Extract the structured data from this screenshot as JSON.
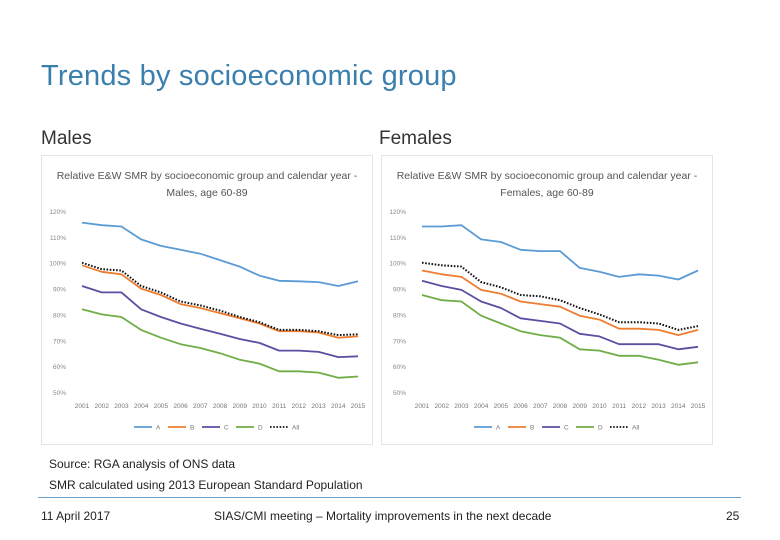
{
  "slide": {
    "title": "Trends by socioeconomic group",
    "males_label": "Males",
    "females_label": "Females",
    "source_note": "Source: RGA analysis of ONS data",
    "smr_note": "SMR calculated using 2013 European Standard Population",
    "footer_date": "11 April 2017",
    "footer_meeting": "SIAS/CMI meeting – Mortality improvements in the next decade",
    "page_number": "25"
  },
  "chart_data": [
    {
      "type": "line",
      "title": "Relative E&W SMR by socioeconomic group and calendar year - Males, age 60-89",
      "xlabel": "",
      "ylabel": "",
      "ylim": [
        50,
        120
      ],
      "yticks": [
        "50%",
        "60%",
        "70%",
        "80%",
        "90%",
        "100%",
        "110%",
        "120%"
      ],
      "x": [
        "2001",
        "2002",
        "2003",
        "2004",
        "2005",
        "2006",
        "2007",
        "2008",
        "2009",
        "2010",
        "2011",
        "2012",
        "2013",
        "2014",
        "2015"
      ],
      "legend_position": "bottom",
      "series": [
        {
          "name": "A",
          "color": "#5b9bd5",
          "dash": "solid",
          "values": [
            115.5,
            114.5,
            114,
            109,
            106.5,
            105,
            103.5,
            101,
            98.5,
            95,
            93,
            92.8,
            92.5,
            91,
            92.8
          ]
        },
        {
          "name": "B",
          "color": "#ed7d31",
          "dash": "solid",
          "values": [
            99,
            96.5,
            95.5,
            90,
            87.5,
            84,
            82.5,
            80.5,
            78.5,
            76.5,
            73.5,
            73.5,
            73,
            71,
            71.5
          ]
        },
        {
          "name": "C",
          "color": "#5c4ea0",
          "dash": "solid",
          "values": [
            91,
            88.5,
            88.5,
            82,
            79,
            76.5,
            74.5,
            72.5,
            70.5,
            69,
            66,
            66,
            65.5,
            63.5,
            63.8
          ]
        },
        {
          "name": "D",
          "color": "#70ad47",
          "dash": "solid",
          "values": [
            82,
            80,
            79,
            74,
            71,
            68.5,
            67,
            65,
            62.5,
            61,
            58,
            58,
            57.5,
            55.5,
            56
          ]
        },
        {
          "name": "All",
          "color": "#111111",
          "dash": "dotted",
          "values": [
            100,
            97.5,
            97,
            91,
            88.5,
            85,
            83.5,
            81.5,
            79,
            77,
            74,
            74,
            73.5,
            72,
            72.3
          ]
        }
      ]
    },
    {
      "type": "line",
      "title": "Relative E&W SMR by socioeconomic group and calendar year - Females, age 60-89",
      "xlabel": "",
      "ylabel": "",
      "ylim": [
        50,
        120
      ],
      "yticks": [
        "50%",
        "60%",
        "70%",
        "80%",
        "90%",
        "100%",
        "110%",
        "120%"
      ],
      "x": [
        "2001",
        "2002",
        "2003",
        "2004",
        "2005",
        "2006",
        "2007",
        "2008",
        "2009",
        "2010",
        "2011",
        "2012",
        "2013",
        "2014",
        "2015"
      ],
      "legend_position": "bottom",
      "series": [
        {
          "name": "A",
          "color": "#5b9bd5",
          "dash": "solid",
          "values": [
            114,
            114,
            114.5,
            109,
            108,
            105,
            104.5,
            104.5,
            98,
            96.5,
            94.5,
            95.5,
            95,
            93.5,
            97
          ]
        },
        {
          "name": "B",
          "color": "#ed7d31",
          "dash": "solid",
          "values": [
            97,
            95.5,
            94.5,
            89.5,
            88,
            85,
            84,
            83,
            79.5,
            78,
            74.5,
            74.5,
            74,
            72,
            74
          ]
        },
        {
          "name": "C",
          "color": "#5c4ea0",
          "dash": "solid",
          "values": [
            93,
            91,
            89.5,
            85,
            82.5,
            78.5,
            77.5,
            76.5,
            72.5,
            71.5,
            68.5,
            68.5,
            68.5,
            66.5,
            67.5
          ]
        },
        {
          "name": "D",
          "color": "#70ad47",
          "dash": "solid",
          "values": [
            87.5,
            85.5,
            85,
            79.5,
            76.5,
            73.5,
            72,
            71,
            66.5,
            66,
            64,
            64,
            62.5,
            60.5,
            61.5
          ]
        },
        {
          "name": "All",
          "color": "#111111",
          "dash": "dotted",
          "values": [
            100,
            99,
            98.5,
            92.5,
            90.5,
            87.5,
            87,
            85.5,
            82.5,
            80,
            77,
            77,
            76.5,
            74,
            75.5
          ]
        }
      ]
    }
  ]
}
